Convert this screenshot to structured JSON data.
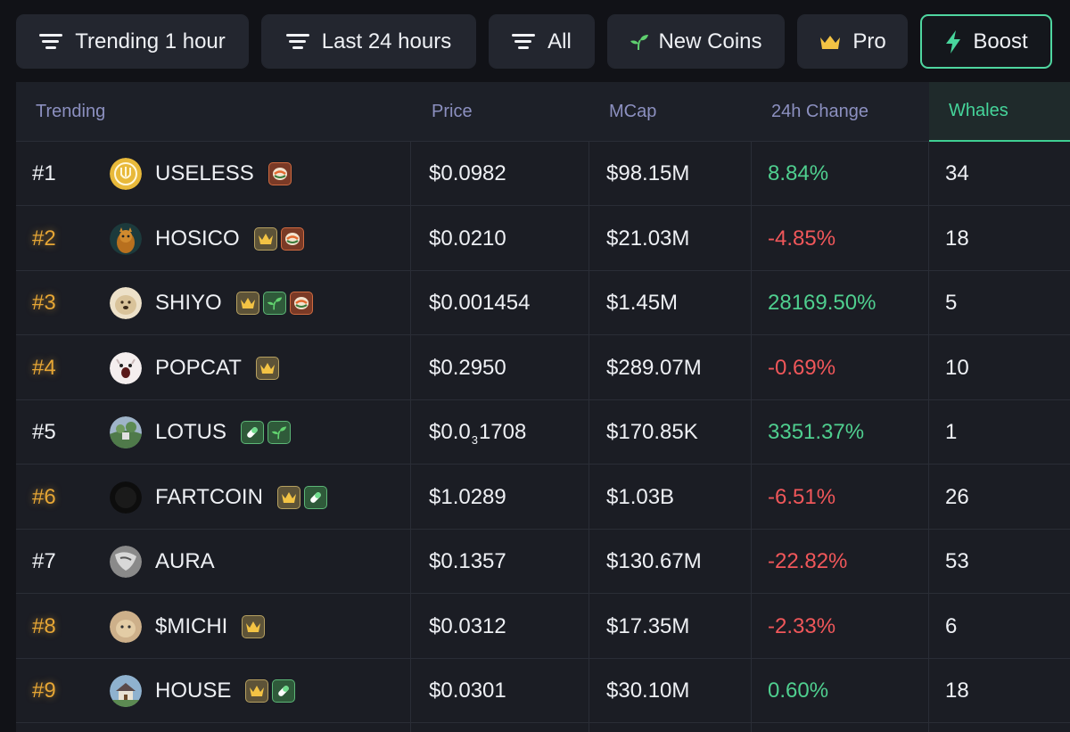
{
  "filters": [
    {
      "label": "Trending 1 hour",
      "icon": "sort-bars-icon"
    },
    {
      "label": "Last 24 hours",
      "icon": "sort-bars-icon"
    },
    {
      "label": "All",
      "icon": "sort-bars-icon"
    },
    {
      "label": "New Coins",
      "icon": "sprout-icon"
    },
    {
      "label": "Pro",
      "icon": "crown-icon"
    },
    {
      "label": "Boost",
      "icon": "lightning-icon"
    }
  ],
  "columns": {
    "trending": "Trending",
    "price": "Price",
    "mcap": "MCap",
    "change": "24h Change",
    "whales": "Whales"
  },
  "colors": {
    "positive": "#4fcf8f",
    "negative": "#f0575a",
    "gold_rank": "#e6a635",
    "active_accent": "#3fcf93"
  },
  "rows": [
    {
      "rank": "#1",
      "gold": false,
      "name": "USELESS",
      "badges": [
        "pump"
      ],
      "price": "$0.0982",
      "mcap": "$98.15M",
      "change": "8.84%",
      "dir": "pos",
      "whales": "34",
      "avatar": "useless"
    },
    {
      "rank": "#2",
      "gold": true,
      "name": "HOSICO",
      "badges": [
        "crown",
        "pump"
      ],
      "price": "$0.0210",
      "mcap": "$21.03M",
      "change": "-4.85%",
      "dir": "neg",
      "whales": "18",
      "avatar": "hosico"
    },
    {
      "rank": "#3",
      "gold": true,
      "name": "SHIYO",
      "badges": [
        "crown",
        "leaf",
        "pump"
      ],
      "price": "$0.001454",
      "mcap": "$1.45M",
      "change": "28169.50%",
      "dir": "pos",
      "whales": "5",
      "avatar": "shiyo"
    },
    {
      "rank": "#4",
      "gold": true,
      "name": "POPCAT",
      "badges": [
        "crown"
      ],
      "price": "$0.2950",
      "mcap": "$289.07M",
      "change": "-0.69%",
      "dir": "neg",
      "whales": "10",
      "avatar": "popcat"
    },
    {
      "rank": "#5",
      "gold": false,
      "name": "LOTUS",
      "badges": [
        "pill",
        "leaf"
      ],
      "price_main": "$0.0",
      "price_sub": "3",
      "price_rest": "1708",
      "mcap": "$170.85K",
      "change": "3351.37%",
      "dir": "pos",
      "whales": "1",
      "avatar": "lotus"
    },
    {
      "rank": "#6",
      "gold": true,
      "name": "FARTCOIN",
      "badges": [
        "crown",
        "pill"
      ],
      "price": "$1.0289",
      "mcap": "$1.03B",
      "change": "-6.51%",
      "dir": "neg",
      "whales": "26",
      "avatar": "fartcoin"
    },
    {
      "rank": "#7",
      "gold": false,
      "name": "AURA",
      "badges": [],
      "price": "$0.1357",
      "mcap": "$130.67M",
      "change": "-22.82%",
      "dir": "neg",
      "whales": "53",
      "avatar": "aura"
    },
    {
      "rank": "#8",
      "gold": true,
      "name": "$MICHI",
      "badges": [
        "crown"
      ],
      "price": "$0.0312",
      "mcap": "$17.35M",
      "change": "-2.33%",
      "dir": "neg",
      "whales": "6",
      "avatar": "michi"
    },
    {
      "rank": "#9",
      "gold": true,
      "name": "HOUSE",
      "badges": [
        "crown",
        "pill"
      ],
      "price": "$0.0301",
      "mcap": "$30.10M",
      "change": "0.60%",
      "dir": "pos",
      "whales": "18",
      "avatar": "house"
    }
  ]
}
